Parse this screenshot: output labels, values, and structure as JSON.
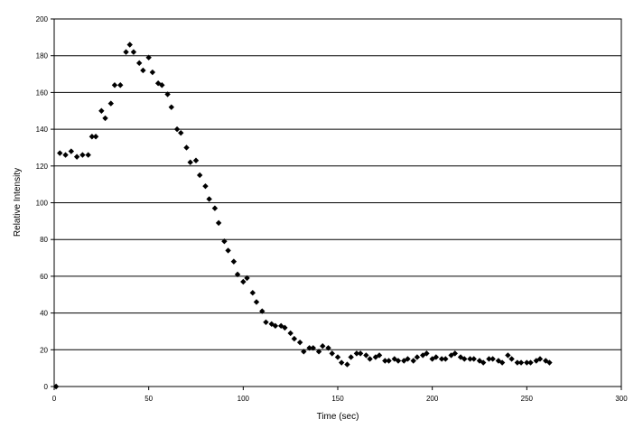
{
  "chart_data": {
    "type": "scatter",
    "xlabel": "Time (sec)",
    "ylabel": "Relative Intensity",
    "xlim": [
      0,
      300
    ],
    "ylim": [
      0,
      200
    ],
    "xticks": [
      0,
      50,
      100,
      150,
      200,
      250,
      300
    ],
    "yticks": [
      0,
      20,
      40,
      60,
      80,
      100,
      120,
      140,
      160,
      180,
      200
    ],
    "grid": "horizontal",
    "legend": "none",
    "marker": "diamond",
    "color": "#000000",
    "x": [
      1,
      3,
      6,
      9,
      12,
      15,
      18,
      20,
      22,
      25,
      27,
      30,
      32,
      35,
      38,
      40,
      42,
      45,
      47,
      50,
      52,
      55,
      57,
      60,
      62,
      65,
      67,
      70,
      72,
      75,
      77,
      80,
      82,
      85,
      87,
      90,
      92,
      95,
      97,
      100,
      102,
      105,
      107,
      110,
      112,
      115,
      117,
      120,
      122,
      125,
      127,
      130,
      132,
      135,
      137,
      140,
      142,
      145,
      147,
      150,
      152,
      155,
      157,
      160,
      162,
      165,
      167,
      170,
      172,
      175,
      177,
      180,
      182,
      185,
      187,
      190,
      192,
      195,
      197,
      200,
      202,
      205,
      207,
      210,
      212,
      215,
      217,
      220,
      222,
      225,
      227,
      230,
      232,
      235,
      237,
      240,
      242,
      245,
      247,
      250,
      252,
      255,
      257,
      260,
      262
    ],
    "y": [
      0,
      127,
      126,
      128,
      125,
      126,
      126,
      136,
      136,
      150,
      146,
      154,
      164,
      164,
      182,
      186,
      182,
      176,
      172,
      179,
      171,
      165,
      164,
      159,
      152,
      140,
      138,
      130,
      122,
      123,
      115,
      109,
      102,
      97,
      89,
      79,
      74,
      68,
      61,
      57,
      59,
      51,
      46,
      41,
      35,
      34,
      33,
      33,
      32,
      29,
      26,
      24,
      19,
      21,
      21,
      19,
      22,
      21,
      18,
      16,
      13,
      12,
      16,
      18,
      18,
      17,
      15,
      16,
      17,
      14,
      14,
      15,
      14,
      14,
      15,
      14,
      16,
      17,
      18,
      15,
      16,
      15,
      15,
      17,
      18,
      16,
      15,
      15,
      15,
      14,
      13,
      15,
      15,
      14,
      13,
      17,
      15,
      13,
      13,
      13,
      13,
      14,
      15,
      14,
      13
    ]
  }
}
